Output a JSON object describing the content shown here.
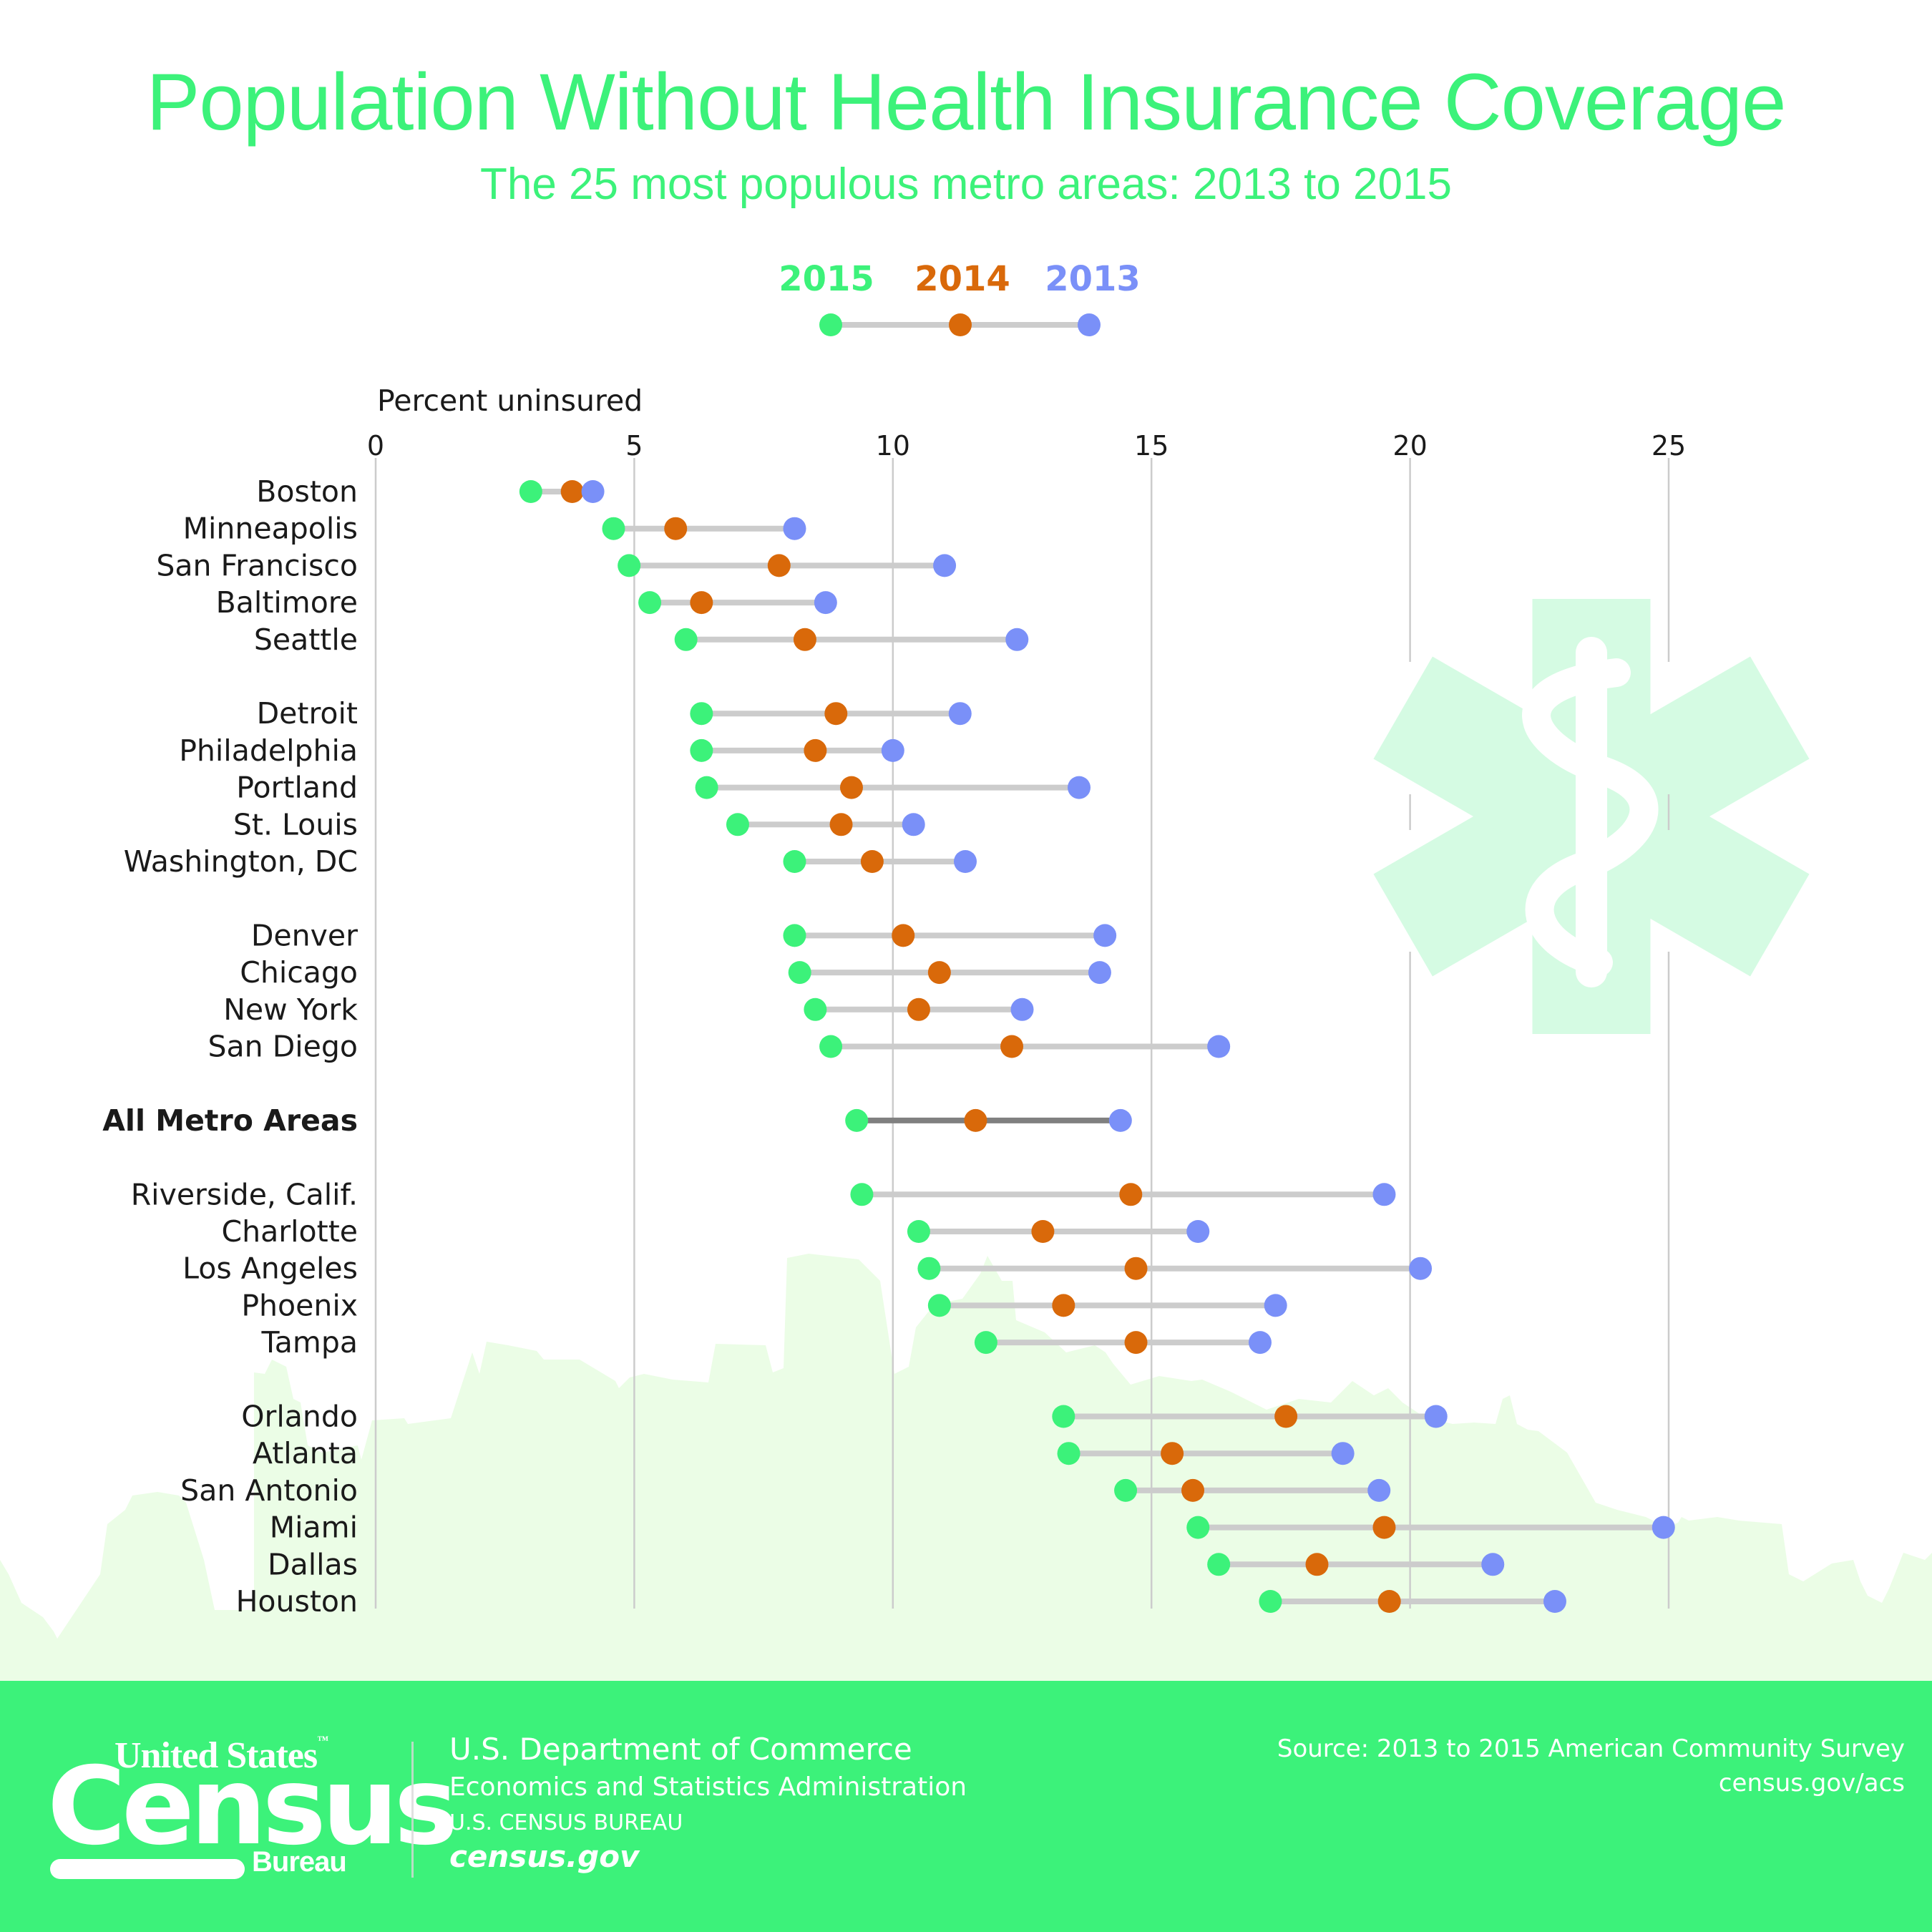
{
  "header": {
    "title": "Population Without Health Insurance Coverage",
    "subtitle": "The 25 most populous metro areas: 2013 to 2015"
  },
  "colors": {
    "brand_green": "#3cf27a",
    "year_2015": "#3cf27a",
    "year_2014": "#d9690a",
    "year_2013": "#7a90f8",
    "connector": "#cccccc",
    "connector_total": "#808080",
    "star_fill": "#d5fbe3",
    "skyline_fill": "#ebfde6"
  },
  "legend": {
    "items": [
      {
        "label": "2015",
        "color": "#3cf27a"
      },
      {
        "label": "2014",
        "color": "#d9690a"
      },
      {
        "label": "2013",
        "color": "#7a90f8"
      }
    ]
  },
  "chart_data": {
    "type": "scatter",
    "subtype": "dumbbell",
    "title": "Population Without Health Insurance Coverage",
    "subtitle": "The 25 most populous metro areas: 2013 to 2015",
    "xlabel": "Percent uninsured",
    "ylabel": "",
    "xlim": [
      0,
      25
    ],
    "xticks": [
      0,
      5,
      10,
      15,
      20,
      25
    ],
    "grid": "vertical",
    "legend_position": "top-center",
    "series_names": [
      "2015",
      "2014",
      "2013"
    ],
    "groups": [
      [
        {
          "name": "Boston",
          "y2015": 3.0,
          "y2014": 3.8,
          "y2013": 4.2
        },
        {
          "name": "Minneapolis",
          "y2015": 4.6,
          "y2014": 5.8,
          "y2013": 8.1
        },
        {
          "name": "San Francisco",
          "y2015": 4.9,
          "y2014": 7.8,
          "y2013": 11.0
        },
        {
          "name": "Baltimore",
          "y2015": 5.3,
          "y2014": 6.3,
          "y2013": 8.7
        },
        {
          "name": "Seattle",
          "y2015": 6.0,
          "y2014": 8.3,
          "y2013": 12.4
        }
      ],
      [
        {
          "name": "Detroit",
          "y2015": 6.3,
          "y2014": 8.9,
          "y2013": 11.3
        },
        {
          "name": "Philadelphia",
          "y2015": 6.3,
          "y2014": 8.5,
          "y2013": 10.0
        },
        {
          "name": "Portland",
          "y2015": 6.4,
          "y2014": 9.2,
          "y2013": 13.6
        },
        {
          "name": "St. Louis",
          "y2015": 7.0,
          "y2014": 9.0,
          "y2013": 10.4
        },
        {
          "name": "Washington, DC",
          "y2015": 8.1,
          "y2014": 9.6,
          "y2013": 11.4
        }
      ],
      [
        {
          "name": "Denver",
          "y2015": 8.1,
          "y2014": 10.2,
          "y2013": 14.1
        },
        {
          "name": "Chicago",
          "y2015": 8.2,
          "y2014": 10.9,
          "y2013": 14.0
        },
        {
          "name": "New York",
          "y2015": 8.5,
          "y2014": 10.5,
          "y2013": 12.5
        },
        {
          "name": "San Diego",
          "y2015": 8.8,
          "y2014": 12.3,
          "y2013": 16.3
        }
      ],
      [
        {
          "name": "All Metro Areas",
          "y2015": 9.3,
          "y2014": 11.6,
          "y2013": 14.4,
          "total": true
        }
      ],
      [
        {
          "name": "Riverside, Calif.",
          "y2015": 9.4,
          "y2014": 14.6,
          "y2013": 19.5
        },
        {
          "name": "Charlotte",
          "y2015": 10.5,
          "y2014": 12.9,
          "y2013": 15.9
        },
        {
          "name": "Los Angeles",
          "y2015": 10.7,
          "y2014": 14.7,
          "y2013": 20.2
        },
        {
          "name": "Phoenix",
          "y2015": 10.9,
          "y2014": 13.3,
          "y2013": 17.4
        },
        {
          "name": "Tampa",
          "y2015": 11.8,
          "y2014": 14.7,
          "y2013": 17.1
        }
      ],
      [
        {
          "name": "Orlando",
          "y2015": 13.3,
          "y2014": 17.6,
          "y2013": 20.5
        },
        {
          "name": "Atlanta",
          "y2015": 13.4,
          "y2014": 15.4,
          "y2013": 18.7
        },
        {
          "name": "San Antonio",
          "y2015": 14.5,
          "y2014": 15.8,
          "y2013": 19.4
        },
        {
          "name": "Miami",
          "y2015": 15.9,
          "y2014": 19.5,
          "y2013": 24.9
        },
        {
          "name": "Dallas",
          "y2015": 16.3,
          "y2014": 18.2,
          "y2013": 21.6
        },
        {
          "name": "Houston",
          "y2015": 17.3,
          "y2014": 19.6,
          "y2013": 22.8
        }
      ]
    ]
  },
  "footer": {
    "logo_line1": "United States",
    "logo_tm": "™",
    "logo_line2": "Census",
    "logo_line3": "Bureau",
    "dept_line1": "U.S. Department of Commerce",
    "dept_line2": "Economics and Statistics Administration",
    "dept_line3": "U.S. CENSUS BUREAU",
    "dept_line4": "census.gov",
    "source": "Source: 2013 to 2015 American Community Survey",
    "source_url": "census.gov/acs"
  }
}
